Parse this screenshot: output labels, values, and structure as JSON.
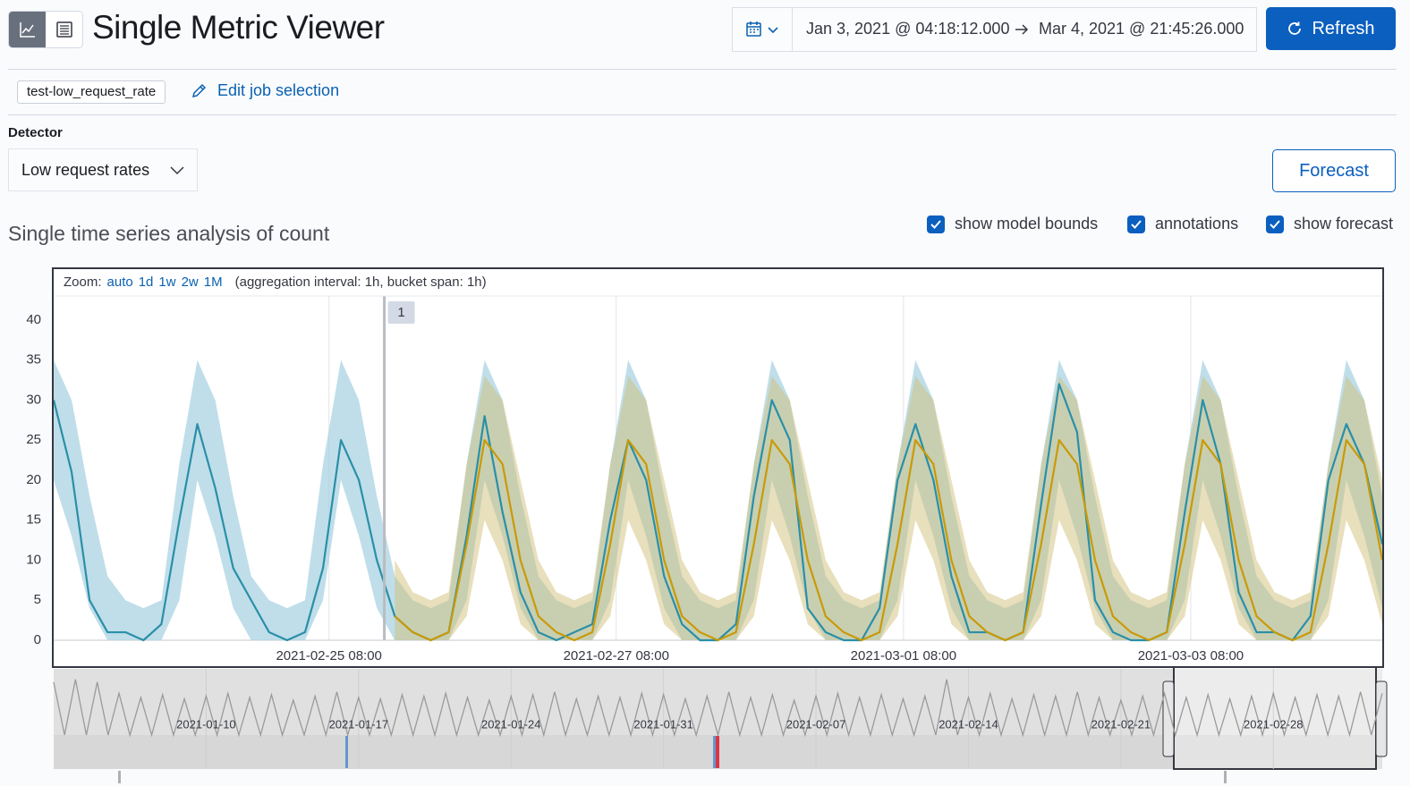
{
  "header": {
    "title": "Single Metric Viewer",
    "date_start": "Jan 3, 2021 @ 04:18:12.000",
    "date_end": "Mar 4, 2021 @ 21:45:26.000",
    "refresh": "Refresh"
  },
  "job": {
    "id": "test-low_request_rate",
    "edit": "Edit job selection"
  },
  "detector": {
    "label": "Detector",
    "value": "Low request rates"
  },
  "forecast_button": "Forecast",
  "subtitle": "Single time series analysis of count",
  "toggles": [
    "show model bounds",
    "annotations",
    "show forecast"
  ],
  "zoom": {
    "label": "Zoom:",
    "options": [
      "auto",
      "1d",
      "1w",
      "2w",
      "1M"
    ],
    "info": "(aggregation interval: 1h, bucket span: 1h)"
  },
  "chart_data": {
    "type": "line",
    "x": [
      "2021-02-23 10:00",
      "2021-02-23 13:00",
      "2021-02-23 16:00",
      "2021-02-23 19:00",
      "2021-02-23 22:00",
      "2021-02-24 01:00",
      "2021-02-24 04:00",
      "2021-02-24 07:00",
      "2021-02-24 10:00",
      "2021-02-24 13:00",
      "2021-02-24 16:00",
      "2021-02-24 19:00",
      "2021-02-24 22:00",
      "2021-02-25 01:00",
      "2021-02-25 04:00",
      "2021-02-25 07:00",
      "2021-02-25 10:00",
      "2021-02-25 13:00",
      "2021-02-25 16:00",
      "2021-02-25 19:00",
      "2021-02-25 22:00",
      "2021-02-26 01:00",
      "2021-02-26 04:00",
      "2021-02-26 07:00",
      "2021-02-26 10:00",
      "2021-02-26 13:00",
      "2021-02-26 16:00",
      "2021-02-26 19:00",
      "2021-02-26 22:00",
      "2021-02-27 01:00",
      "2021-02-27 04:00",
      "2021-02-27 07:00",
      "2021-02-27 10:00",
      "2021-02-27 13:00",
      "2021-02-27 16:00",
      "2021-02-27 19:00",
      "2021-02-27 22:00",
      "2021-02-28 01:00",
      "2021-02-28 04:00",
      "2021-02-28 07:00",
      "2021-02-28 10:00",
      "2021-02-28 13:00",
      "2021-02-28 16:00",
      "2021-02-28 19:00",
      "2021-02-28 22:00",
      "2021-03-01 01:00",
      "2021-03-01 04:00",
      "2021-03-01 07:00",
      "2021-03-01 10:00",
      "2021-03-01 13:00",
      "2021-03-01 16:00",
      "2021-03-01 19:00",
      "2021-03-01 22:00",
      "2021-03-02 01:00",
      "2021-03-02 04:00",
      "2021-03-02 07:00",
      "2021-03-02 10:00",
      "2021-03-02 13:00",
      "2021-03-02 16:00",
      "2021-03-02 19:00",
      "2021-03-02 22:00",
      "2021-03-03 01:00",
      "2021-03-03 04:00",
      "2021-03-03 07:00",
      "2021-03-03 10:00",
      "2021-03-03 13:00",
      "2021-03-03 16:00",
      "2021-03-03 19:00",
      "2021-03-03 22:00",
      "2021-03-04 01:00",
      "2021-03-04 04:00",
      "2021-03-04 07:00",
      "2021-03-04 10:00",
      "2021-03-04 13:00",
      "2021-03-04 16:00"
    ],
    "series": [
      {
        "color": "#2a8fa8",
        "values": [
          30,
          21,
          5,
          1,
          1,
          0,
          2,
          15,
          27,
          19,
          9,
          5,
          1,
          0,
          1,
          9,
          25,
          20,
          10,
          3,
          1,
          0,
          1,
          13,
          28,
          16,
          6,
          1,
          0,
          1,
          2,
          15,
          25,
          20,
          8,
          2,
          0,
          0,
          2,
          18,
          30,
          25,
          4,
          1,
          0,
          0,
          4,
          20,
          27,
          20,
          8,
          1,
          1,
          0,
          1,
          17,
          32,
          26,
          5,
          1,
          0,
          0,
          1,
          16,
          30,
          22,
          6,
          1,
          1,
          0,
          3,
          20,
          27,
          22,
          12
        ]
      },
      {
        "color": "#c99a06",
        "values": [
          null,
          null,
          null,
          null,
          null,
          null,
          null,
          null,
          null,
          null,
          null,
          null,
          null,
          null,
          null,
          null,
          null,
          null,
          null,
          3,
          1,
          0,
          1,
          12,
          25,
          22,
          10,
          3,
          1,
          0,
          1,
          12,
          25,
          22,
          10,
          3,
          1,
          0,
          1,
          12,
          25,
          22,
          10,
          3,
          1,
          0,
          1,
          12,
          25,
          22,
          10,
          3,
          1,
          0,
          1,
          12,
          25,
          22,
          10,
          3,
          1,
          0,
          1,
          12,
          25,
          22,
          10,
          3,
          1,
          0,
          1,
          12,
          25,
          22,
          10
        ]
      }
    ],
    "bounds": {
      "color": "#a9d3e1",
      "upper": [
        35,
        30,
        18,
        8,
        5,
        4,
        5,
        22,
        35,
        30,
        18,
        8,
        5,
        4,
        5,
        22,
        35,
        30,
        18,
        8,
        5,
        4,
        5,
        22,
        35,
        30,
        18,
        8,
        5,
        4,
        5,
        22,
        35,
        30,
        18,
        8,
        5,
        4,
        5,
        22,
        35,
        30,
        18,
        8,
        5,
        4,
        5,
        22,
        35,
        30,
        18,
        8,
        5,
        4,
        5,
        22,
        35,
        30,
        18,
        8,
        5,
        4,
        5,
        22,
        35,
        30,
        18,
        8,
        5,
        4,
        5,
        22,
        35,
        30,
        18
      ],
      "lower": [
        20,
        13,
        4,
        0,
        0,
        0,
        0,
        5,
        20,
        13,
        4,
        0,
        0,
        0,
        0,
        5,
        20,
        13,
        4,
        0,
        0,
        0,
        0,
        5,
        20,
        13,
        4,
        0,
        0,
        0,
        0,
        5,
        20,
        13,
        4,
        0,
        0,
        0,
        0,
        5,
        20,
        13,
        4,
        0,
        0,
        0,
        0,
        5,
        20,
        13,
        4,
        0,
        0,
        0,
        0,
        5,
        20,
        13,
        4,
        0,
        0,
        0,
        0,
        5,
        20,
        13,
        4,
        0,
        0,
        0,
        0,
        5,
        20,
        13,
        4
      ]
    },
    "forecast_bounds": {
      "color": "#d2c07a",
      "upper": [
        null,
        null,
        null,
        null,
        null,
        null,
        null,
        null,
        null,
        null,
        null,
        null,
        null,
        null,
        null,
        null,
        null,
        null,
        null,
        10,
        6,
        5,
        6,
        22,
        33,
        30,
        20,
        10,
        6,
        5,
        6,
        22,
        33,
        30,
        20,
        10,
        6,
        5,
        6,
        22,
        33,
        30,
        20,
        10,
        6,
        5,
        6,
        22,
        33,
        30,
        20,
        10,
        6,
        5,
        6,
        22,
        33,
        30,
        20,
        10,
        6,
        5,
        6,
        22,
        33,
        30,
        20,
        10,
        6,
        5,
        6,
        22,
        33,
        30,
        20
      ],
      "lower": [
        null,
        null,
        null,
        null,
        null,
        null,
        null,
        null,
        null,
        null,
        null,
        null,
        null,
        null,
        null,
        null,
        null,
        null,
        null,
        0,
        0,
        0,
        0,
        3,
        15,
        10,
        2,
        0,
        0,
        0,
        0,
        3,
        15,
        10,
        2,
        0,
        0,
        0,
        0,
        3,
        15,
        10,
        2,
        0,
        0,
        0,
        0,
        3,
        15,
        10,
        2,
        0,
        0,
        0,
        0,
        3,
        15,
        10,
        2,
        0,
        0,
        0,
        0,
        3,
        15,
        10,
        2,
        0,
        0,
        0,
        0,
        3,
        15,
        10,
        2
      ]
    },
    "annotation": {
      "label": "1",
      "x": "2021-02-25 17:15"
    },
    "xlim": [
      "2021-02-23 10:00",
      "2021-03-04 16:00"
    ],
    "xticks": [
      "2021-02-25 08:00",
      "2021-02-27 08:00",
      "2021-03-01 08:00",
      "2021-03-03 08:00"
    ],
    "ylim": [
      0,
      43
    ],
    "yticks": [
      0,
      5,
      10,
      15,
      20,
      25,
      30,
      35,
      40
    ]
  },
  "context": {
    "color": "#9a9a9a",
    "ylim": [
      0,
      45
    ],
    "categories": [
      null,
      null,
      null,
      null,
      null,
      null,
      null,
      null,
      null,
      null,
      null,
      null,
      null,
      null,
      "2021-01-10",
      null,
      null,
      null,
      null,
      null,
      null,
      null,
      null,
      null,
      null,
      null,
      null,
      null,
      "2021-01-17",
      null,
      null,
      null,
      null,
      null,
      null,
      null,
      null,
      null,
      null,
      null,
      null,
      null,
      "2021-01-24",
      null,
      null,
      null,
      null,
      null,
      null,
      null,
      null,
      null,
      null,
      null,
      null,
      null,
      "2021-01-31",
      null,
      null,
      null,
      null,
      null,
      null,
      null,
      null,
      null,
      null,
      null,
      null,
      null,
      "2021-02-07",
      null,
      null,
      null,
      null,
      null,
      null,
      null,
      null,
      null,
      null,
      null,
      null,
      null,
      "2021-02-14",
      null,
      null,
      null,
      null,
      null,
      null,
      null,
      null,
      null,
      null,
      null,
      null,
      null,
      "2021-02-21",
      null,
      null,
      null,
      null,
      null,
      null,
      null,
      null,
      null,
      null,
      null,
      null,
      null,
      "2021-02-28",
      null,
      null,
      null,
      null,
      null,
      null,
      null,
      null,
      null,
      null
    ],
    "values": [
      38,
      0,
      40,
      0,
      38,
      0,
      30,
      0,
      27,
      0,
      29,
      0,
      26,
      0,
      28,
      0,
      30,
      0,
      27,
      0,
      29,
      0,
      25,
      0,
      28,
      0,
      31,
      0,
      27,
      0,
      26,
      0,
      29,
      0,
      28,
      0,
      30,
      0,
      27,
      0,
      25,
      0,
      28,
      0,
      29,
      0,
      31,
      0,
      26,
      0,
      28,
      0,
      27,
      0,
      30,
      0,
      29,
      0,
      26,
      0,
      28,
      0,
      31,
      0,
      27,
      0,
      29,
      0,
      25,
      0,
      28,
      0,
      30,
      0,
      27,
      0,
      29,
      0,
      26,
      0,
      28,
      0,
      40,
      0,
      27,
      0,
      30,
      0,
      26,
      0,
      29,
      0,
      28,
      0,
      31,
      0,
      27,
      0,
      25,
      0,
      28,
      0,
      30,
      0,
      27,
      0,
      29,
      0,
      26,
      0,
      28,
      0,
      30,
      0,
      27,
      0,
      29,
      0,
      28,
      0,
      31,
      0,
      30
    ]
  }
}
